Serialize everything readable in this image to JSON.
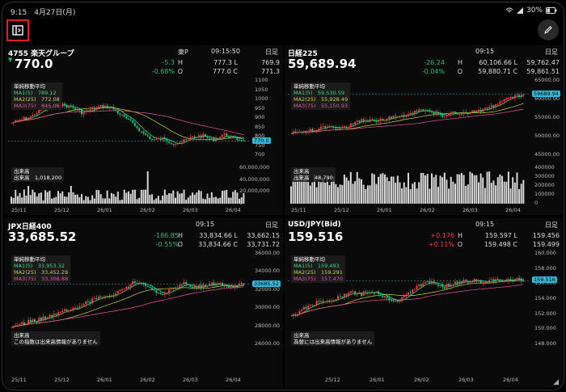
{
  "status": {
    "time": "9:15",
    "date": "4月27日(月)",
    "battery": "30%"
  },
  "colors": {
    "candle_up": "#ff3b3b",
    "candle_down": "#19c37d",
    "ma1": "#3ddc84",
    "ma2": "#cbd63a",
    "ma3": "#e8559c",
    "price_tag": "#35b8d8",
    "highlight_box": "#e02020"
  },
  "icons": {
    "sidebar": "sidebar-toggle-icon",
    "edit": "pencil-icon",
    "wifi": "wifi-icon",
    "battery": "battery-icon"
  },
  "panels": [
    {
      "name": "4755 楽天グループ",
      "price": "770.0",
      "exchange": "東P",
      "time": "09:15:50",
      "ashi": "日足",
      "change": "-5.3",
      "change_pct": "-0.68%",
      "H_val": "777.3 L",
      "O_val": "777.0 C",
      "L_val": "769.9",
      "C_val": "771.3",
      "legend_title": "単純移動平均",
      "ma1": "MA1(5)",
      "ma1_v": "789.12",
      "ma2": "MA2(25)",
      "ma2_v": "772.08",
      "ma3": "MA3(75)",
      "ma3_v": "845.06",
      "vol_title": "出来高",
      "vol_value": "出来高　1,018,200",
      "yticks": [
        "1100",
        "1050",
        "1000",
        "950",
        "900",
        "850",
        "800",
        "750",
        "700"
      ],
      "vticks": [
        "60,000,000",
        "40,000,000",
        "20,000,000",
        "0"
      ],
      "xticks": [
        "25/11",
        "25/12",
        "26/01",
        "26/02",
        "26/03",
        "26/04"
      ],
      "last": "770.0"
    },
    {
      "name": "日経225",
      "price": "59,689.94",
      "exchange": "",
      "time": "09:15",
      "ashi": "日足",
      "change": "-26.24",
      "change_pct": "-0.04%",
      "H_val": "60,106.66 L",
      "O_val": "59,880.71 C",
      "L_val": "59,762.47",
      "C_val": "59,861.51",
      "legend_title": "単純移動平均",
      "ma1": "MA1(5)",
      "ma1_v": "59,530.59",
      "ma2": "MA2(25)",
      "ma2_v": "55,928.49",
      "ma3": "MA3(75)",
      "ma3_v": "55,150.93",
      "vol_title": "出来高",
      "vol_value": "出来高　48,790",
      "yticks": [
        "65000.00",
        "60000.00",
        "55000.00",
        "50000.00",
        "45000.00"
      ],
      "vticks": [
        "400000",
        "300000",
        "200000",
        "100000",
        "0"
      ],
      "xticks": [
        "25/11",
        "25/12",
        "26/01",
        "26/02",
        "26/03",
        "26/04"
      ],
      "last": "59689.94"
    },
    {
      "name": "JPX日経400",
      "price": "33,685.52",
      "exchange": "",
      "time": "09:15",
      "ashi": "日足",
      "change": "-186.85",
      "change_pct": "-0.55%",
      "H_val": "33,834.66 L",
      "O_val": "33,834.66 C",
      "L_val": "33,662.15",
      "C_val": "33,731.72",
      "legend_title": "単純移動平均",
      "ma1": "MA1(5)",
      "ma1_v": "33,953.32",
      "ma2": "MA2(25)",
      "ma2_v": "33,452.29",
      "ma3": "MA3(75)",
      "ma3_v": "33,308.88",
      "vol_title": "出来高",
      "vol_value": "この指数は出来高情報がありません",
      "yticks": [
        "36000.00",
        "34000.00",
        "32000.00",
        "30000.00",
        "28000.00",
        "26000.00"
      ],
      "vticks": [],
      "xticks": [
        "25/11",
        "25/12",
        "26/01",
        "26/02",
        "26/03",
        "26/04"
      ],
      "last": "33685.52"
    },
    {
      "name": "USD/JPY(Bid)",
      "price": "159.516",
      "exchange": "",
      "time": "09:15",
      "ashi": "日足",
      "change": "+0.176",
      "change_pct": "+0.11%",
      "H_val": "159.597 L",
      "O_val": "159.498 C",
      "L_val": "159.456",
      "C_val": "159.499",
      "legend_title": "単純移動平均",
      "ma1": "MA1(5)",
      "ma1_v": "159.493",
      "ma2": "MA2(25)",
      "ma2_v": "159.291",
      "ma3": "MA3(75)",
      "ma3_v": "157.470",
      "vol_title": "出来高",
      "vol_value": "為替には出来高情報がありません",
      "yticks": [
        "160.000",
        "158.000",
        "156.000",
        "154.000",
        "152.000",
        "150.000",
        "148.000"
      ],
      "vticks": [],
      "xticks": [
        "25/12",
        "26/01",
        "26/02",
        "26/03",
        "26/04"
      ],
      "last": "159.516"
    }
  ],
  "labels": {
    "H": "H",
    "O": "O"
  }
}
